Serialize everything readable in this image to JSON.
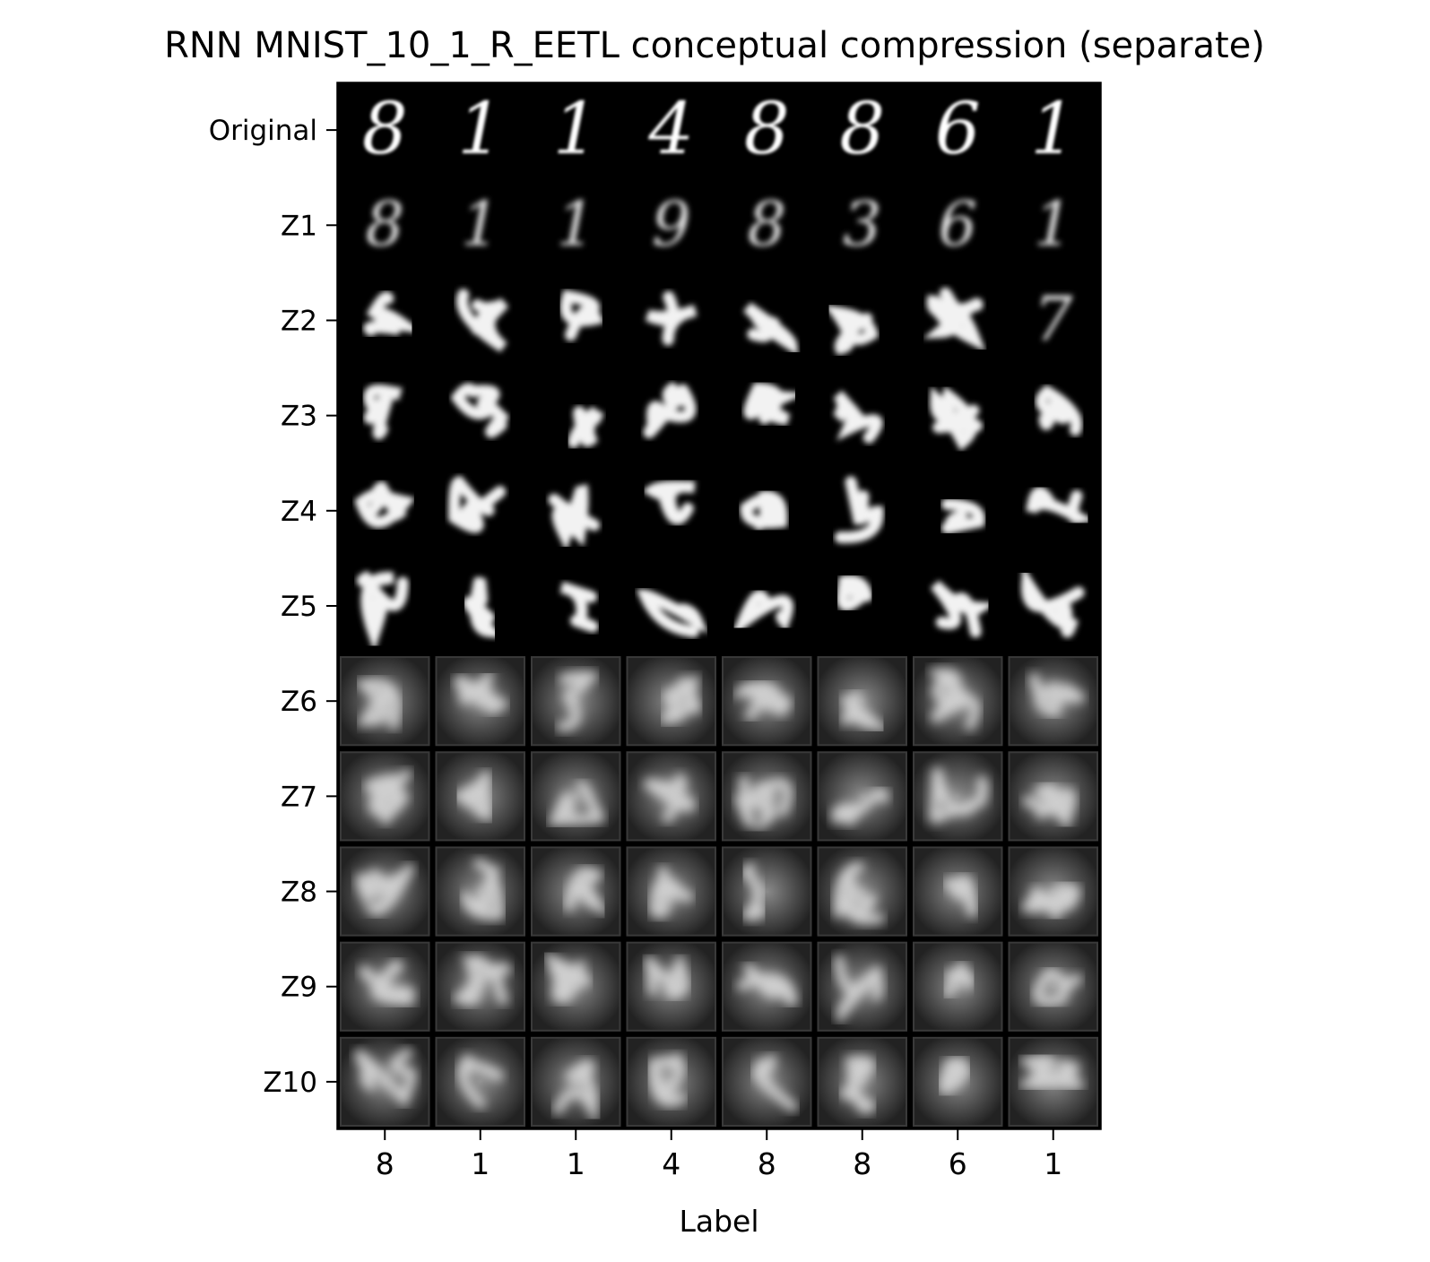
{
  "chart_data": {
    "type": "image-grid",
    "title": "RNN MNIST_10_1_R_EETL conceptual compression (separate)",
    "xlabel": "Label",
    "ylabel": "",
    "column_labels": [
      "8",
      "1",
      "1",
      "4",
      "8",
      "8",
      "6",
      "1"
    ],
    "row_labels": [
      "Original",
      "Z1",
      "Z2",
      "Z3",
      "Z4",
      "Z5",
      "Z6",
      "Z7",
      "Z8",
      "Z9",
      "Z10"
    ],
    "rows": [
      {
        "name": "Original",
        "digits": [
          "8",
          "1",
          "1",
          "4",
          "8",
          "8",
          "6",
          "1"
        ]
      },
      {
        "name": "Z1",
        "digits": [
          "8",
          "1",
          "1",
          "9",
          "8",
          "3",
          "6",
          "1"
        ]
      },
      {
        "name": "Z2",
        "digits": [
          "",
          "",
          "",
          "",
          "",
          "",
          "",
          "7"
        ]
      },
      {
        "name": "Z3",
        "digits": [
          "",
          "",
          "",
          "",
          "",
          "",
          "",
          ""
        ]
      },
      {
        "name": "Z4",
        "digits": [
          "",
          "",
          "",
          "",
          "",
          "",
          "",
          ""
        ]
      },
      {
        "name": "Z5",
        "digits": [
          "",
          "",
          "",
          "",
          "",
          "",
          "",
          ""
        ]
      },
      {
        "name": "Z6",
        "digits": [
          "",
          "",
          "",
          "",
          "",
          "",
          "",
          ""
        ]
      },
      {
        "name": "Z7",
        "digits": [
          "",
          "",
          "",
          "",
          "",
          "",
          "",
          ""
        ]
      },
      {
        "name": "Z8",
        "digits": [
          "",
          "",
          "",
          "",
          "",
          "",
          "",
          ""
        ]
      },
      {
        "name": "Z9",
        "digits": [
          "",
          "",
          "",
          "",
          "",
          "",
          "",
          ""
        ]
      },
      {
        "name": "Z10",
        "digits": [
          "",
          "",
          "",
          "",
          "",
          "",
          "",
          ""
        ]
      }
    ],
    "grid": false
  }
}
